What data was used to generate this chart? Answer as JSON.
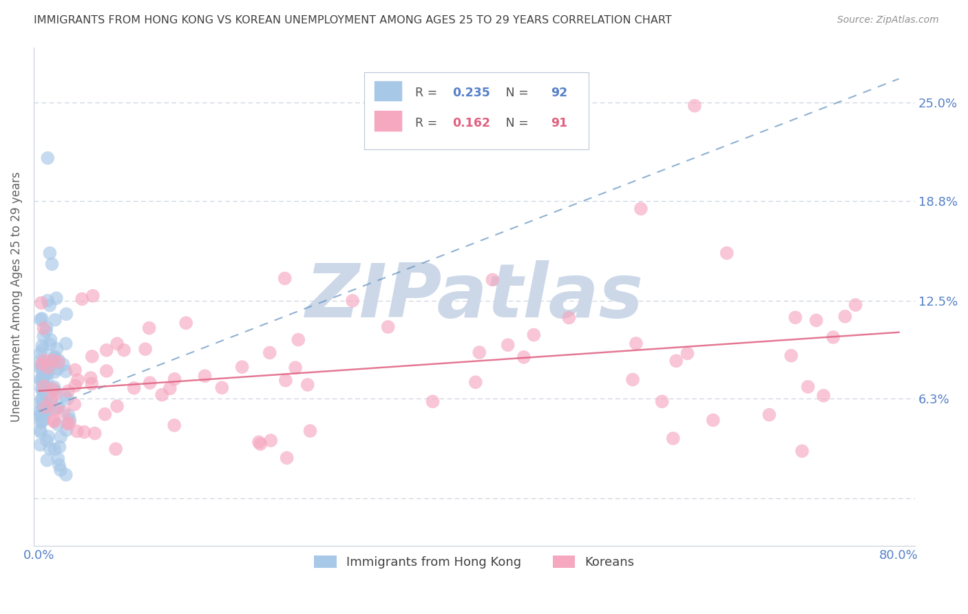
{
  "title": "IMMIGRANTS FROM HONG KONG VS KOREAN UNEMPLOYMENT AMONG AGES 25 TO 29 YEARS CORRELATION CHART",
  "source_text": "Source: ZipAtlas.com",
  "ylabel": "Unemployment Among Ages 25 to 29 years",
  "xlim": [
    -0.005,
    0.815
  ],
  "ylim": [
    -0.03,
    0.285
  ],
  "yticks": [
    0.0,
    0.063,
    0.125,
    0.188,
    0.25
  ],
  "ytick_labels": [
    "",
    "6.3%",
    "12.5%",
    "18.8%",
    "25.0%"
  ],
  "xticks": [
    0.0,
    0.2,
    0.4,
    0.6,
    0.8
  ],
  "xtick_labels": [
    "0.0%",
    "",
    "",
    "",
    "80.0%"
  ],
  "legend_entries": [
    {
      "label": "Immigrants from Hong Kong",
      "color": "#a8c8e8",
      "R": "0.235",
      "N": "92"
    },
    {
      "label": "Koreans",
      "color": "#f5a8c0",
      "R": "0.162",
      "N": "91"
    }
  ],
  "watermark_text": "ZIPatlas",
  "watermark_color": "#ccd8e8",
  "hk_scatter_color": "#a8c8e8",
  "korean_scatter_color": "#f5a8c0",
  "hk_trend_color": "#6090c0",
  "korean_trend_color": "#e06080",
  "title_color": "#404040",
  "axis_label_color": "#606060",
  "tick_label_color": "#5580c8",
  "grid_color": "#c8d0dc",
  "background_color": "#ffffff",
  "hk_trend_x": [
    0.0,
    0.8
  ],
  "hk_trend_y": [
    0.055,
    0.265
  ],
  "korean_trend_x": [
    0.0,
    0.8
  ],
  "korean_trend_y": [
    0.068,
    0.105
  ]
}
